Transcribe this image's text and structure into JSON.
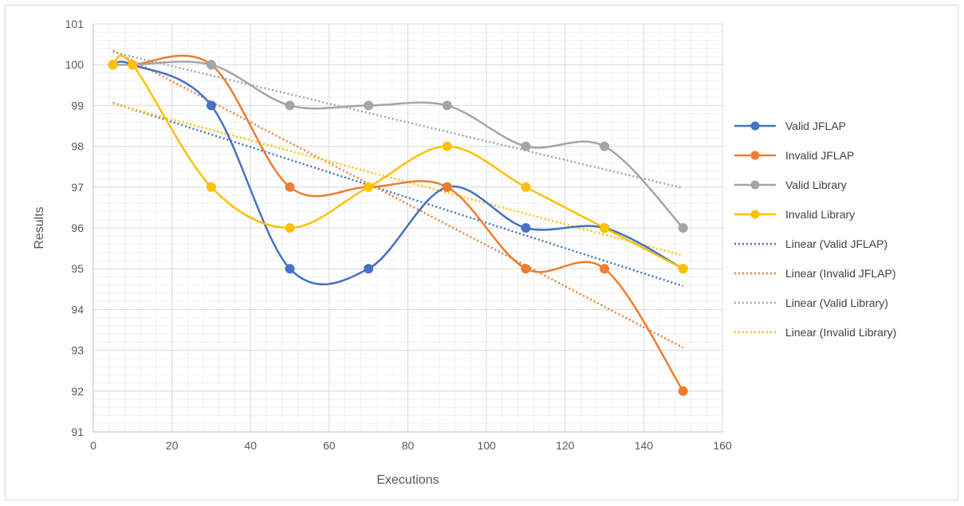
{
  "chart_data": {
    "type": "scatter",
    "title": "",
    "xlabel": "Executions",
    "ylabel": "Results",
    "xlim": [
      0,
      160
    ],
    "ylim": [
      91,
      101
    ],
    "xticks": [
      0,
      20,
      40,
      60,
      80,
      100,
      120,
      140,
      160
    ],
    "yticks": [
      91,
      92,
      93,
      94,
      95,
      96,
      97,
      98,
      99,
      100,
      101
    ],
    "grid": true,
    "minor_grid": true,
    "smooth_lines": true,
    "legend_position": "right",
    "x": [
      5,
      10,
      30,
      50,
      70,
      90,
      110,
      130,
      150
    ],
    "series": [
      {
        "name": "Valid JFLAP",
        "color": "#4472C4",
        "values": [
          100,
          100,
          99,
          95,
          95,
          97,
          96,
          96,
          95
        ]
      },
      {
        "name": "Invalid JFLAP",
        "color": "#ED7D31",
        "values": [
          100,
          100,
          100,
          97,
          97,
          97,
          95,
          95,
          92
        ]
      },
      {
        "name": "Valid Library",
        "color": "#A5A5A5",
        "values": [
          100,
          100,
          100,
          99,
          99,
          99,
          98,
          98,
          96
        ]
      },
      {
        "name": "Invalid Library",
        "color": "#FFC000",
        "values": [
          100,
          100,
          97,
          96,
          97,
          98,
          97,
          96,
          95
        ]
      }
    ],
    "trendlines": [
      {
        "name": "Linear (Valid JFLAP)",
        "color": "#4472C4",
        "of": 0
      },
      {
        "name": "Linear (Invalid JFLAP)",
        "color": "#ED7D31",
        "of": 1
      },
      {
        "name": "Linear (Valid Library)",
        "color": "#A5A5A5",
        "of": 2
      },
      {
        "name": "Linear (Invalid Library)",
        "color": "#FFC000",
        "of": 3
      }
    ]
  }
}
